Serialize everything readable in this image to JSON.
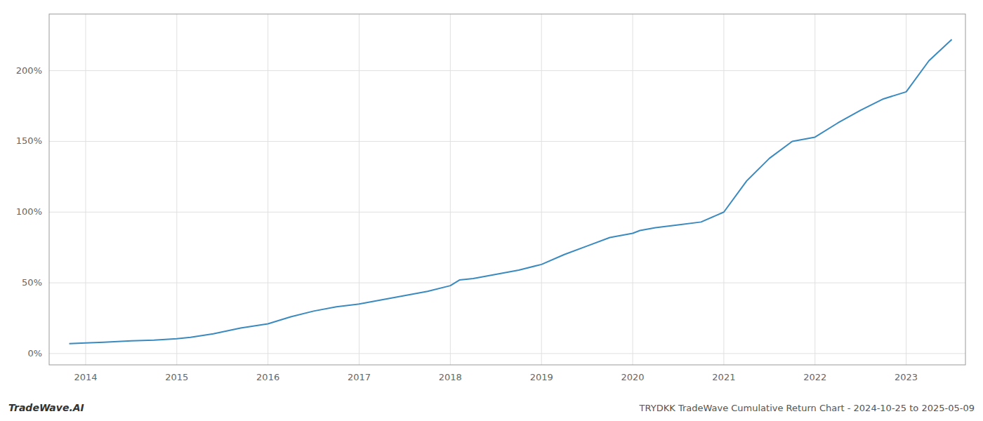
{
  "chart_data": {
    "type": "line",
    "title": "TRYDKK TradeWave Cumulative Return Chart - 2024-10-25 to 2025-05-09",
    "annotations": [
      "TradeWave.AI"
    ],
    "x": [
      2013.82,
      2014.0,
      2014.2,
      2014.5,
      2014.75,
      2015.0,
      2015.15,
      2015.4,
      2015.7,
      2016.0,
      2016.25,
      2016.5,
      2016.75,
      2017.0,
      2017.25,
      2017.5,
      2017.75,
      2018.0,
      2018.1,
      2018.25,
      2018.5,
      2018.75,
      2019.0,
      2019.25,
      2019.5,
      2019.75,
      2020.0,
      2020.08,
      2020.25,
      2020.5,
      2020.75,
      2021.0,
      2021.25,
      2021.5,
      2021.75,
      2022.0,
      2022.25,
      2022.5,
      2022.75,
      2023.0,
      2023.25,
      2023.5
    ],
    "values": [
      7,
      7.5,
      8,
      9,
      9.5,
      10.5,
      11.5,
      14,
      18,
      21,
      26,
      30,
      33,
      35,
      38,
      41,
      44,
      48,
      52,
      53,
      56,
      59,
      63,
      70,
      76,
      82,
      85,
      87,
      89,
      91,
      93,
      100,
      122,
      138,
      150,
      153,
      163,
      172,
      180,
      185,
      207,
      222
    ],
    "color": "#3a8abf",
    "xlim": [
      2013.6,
      2023.65
    ],
    "ylim": [
      -8,
      240
    ],
    "xticks": [
      2014,
      2015,
      2016,
      2017,
      2018,
      2019,
      2020,
      2021,
      2022,
      2023
    ],
    "yticks": [
      {
        "value": 0,
        "label": "0%"
      },
      {
        "value": 50,
        "label": "50%"
      },
      {
        "value": 100,
        "label": "100%"
      },
      {
        "value": 150,
        "label": "150%"
      },
      {
        "value": 200,
        "label": "200%"
      }
    ],
    "grid": true
  }
}
